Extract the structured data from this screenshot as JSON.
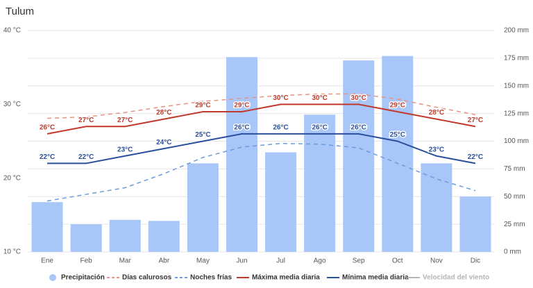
{
  "chart_data": {
    "type": "combo",
    "title": "Tulum",
    "categories": [
      "Ene",
      "Feb",
      "Mar",
      "Abr",
      "May",
      "Jun",
      "Jul",
      "Ago",
      "Sep",
      "Oct",
      "Nov",
      "Dic"
    ],
    "ylim": [
      10,
      40
    ],
    "yticks": [
      {
        "value": 10,
        "label": "10 °C"
      },
      {
        "value": 20,
        "label": "20 °C"
      },
      {
        "value": 30,
        "label": "30 °C"
      },
      {
        "value": 40,
        "label": "40 °C"
      }
    ],
    "y2lim": [
      0,
      200
    ],
    "y2ticks": [
      {
        "value": 0,
        "label": "0 mm"
      },
      {
        "value": 25,
        "label": "25 mm"
      },
      {
        "value": 50,
        "label": "50 mm"
      },
      {
        "value": 75,
        "label": "75 mm"
      },
      {
        "value": 100,
        "label": "100 mm"
      },
      {
        "value": 125,
        "label": "125 mm"
      },
      {
        "value": 150,
        "label": "150 mm"
      },
      {
        "value": 175,
        "label": "175 mm"
      },
      {
        "value": 200,
        "label": "200 mm"
      }
    ],
    "grid": true,
    "series": [
      {
        "name": "Precipitación",
        "type": "bar",
        "axis": "y2",
        "color": "#a9c6f9",
        "values": [
          45,
          25,
          29,
          28,
          80,
          176,
          90,
          124,
          173,
          177,
          80,
          50
        ]
      },
      {
        "name": "Días calurosos",
        "type": "dashed",
        "color": "#e8937f",
        "values": [
          28.1,
          28.3,
          28.9,
          29.7,
          30.4,
          30.8,
          31.2,
          31.4,
          31.4,
          30.7,
          29.6,
          28.6
        ]
      },
      {
        "name": "Noches frías",
        "type": "dashed",
        "color": "#6c9bd9",
        "values": [
          16.9,
          17.8,
          18.7,
          20.6,
          22.8,
          24.2,
          24.7,
          24.6,
          24.1,
          22.0,
          19.9,
          18.3
        ]
      },
      {
        "name": "Máxima media diaria",
        "type": "line",
        "color": "#c0392b",
        "values": [
          26,
          27,
          27,
          28,
          29,
          29,
          30,
          30,
          30,
          29,
          28,
          27
        ],
        "value_labels": [
          "26°C",
          "27°C",
          "27°C",
          "28°C",
          "29°C",
          "29°C",
          "30°C",
          "30°C",
          "30°C",
          "29°C",
          "28°C",
          "27°C"
        ]
      },
      {
        "name": "Mínima media diaria",
        "type": "line",
        "color": "#2b4f9c",
        "values": [
          22,
          22,
          23,
          24,
          25,
          26,
          26,
          26,
          26,
          25,
          23,
          22
        ],
        "value_labels": [
          "22°C",
          "22°C",
          "23°C",
          "24°C",
          "25°C",
          "26°C",
          "26°C",
          "26°C",
          "26°C",
          "25°C",
          "23°C",
          "22°C"
        ]
      },
      {
        "name": "Velocidad del viento",
        "type": "line",
        "hidden": true,
        "color": "#b5b5b5",
        "values": [
          null,
          null,
          null,
          null,
          null,
          null,
          null,
          null,
          null,
          null,
          null,
          null
        ]
      }
    ]
  }
}
